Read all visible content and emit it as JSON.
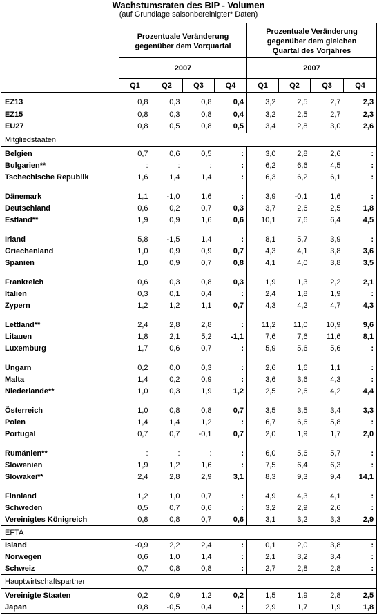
{
  "title": "Wachstumsraten des BIP  -  Volumen",
  "subtitle": "(auf Grundlage saisonbereinigter* Daten)",
  "header": {
    "group1": "Prozentuale Veränderung gegenüber dem Vorquartal",
    "group1_line1": "Prozentuale Veränderung",
    "group1_line2": "gegenüber dem Vorquartal",
    "group2_line1": "Prozentuale Veränderung",
    "group2_line2": "gegenüber dem gleichen",
    "group2_line3": "Quartal des Vorjahres",
    "year1": "2007",
    "year2": "2007",
    "quarters": [
      "Q1",
      "Q2",
      "Q3",
      "Q4",
      "Q1",
      "Q2",
      "Q3",
      "Q4"
    ]
  },
  "aggregates": [
    {
      "name": "EZ13",
      "v": [
        "0,8",
        "0,3",
        "0,8",
        "0,4",
        "3,2",
        "2,5",
        "2,7",
        "2,3"
      ]
    },
    {
      "name": "EZ15",
      "v": [
        "0,8",
        "0,3",
        "0,8",
        "0,4",
        "3,2",
        "2,5",
        "2,7",
        "2,3"
      ]
    },
    {
      "name": "EU27",
      "v": [
        "0,8",
        "0,5",
        "0,8",
        "0,5",
        "3,4",
        "2,8",
        "3,0",
        "2,6"
      ]
    }
  ],
  "sections": {
    "members": "Mitgliedstaaten",
    "efta": "EFTA",
    "partners": "Hauptwirtschaftspartner"
  },
  "member_groups": [
    [
      {
        "name": "Belgien",
        "v": [
          "0,7",
          "0,6",
          "0,5",
          ":",
          "3,0",
          "2,8",
          "2,6",
          ":"
        ]
      },
      {
        "name": "Bulgarien**",
        "v": [
          ":",
          ":",
          ":",
          ":",
          "6,2",
          "6,6",
          "4,5",
          ":"
        ]
      },
      {
        "name": "Tschechische Republik",
        "v": [
          "1,6",
          "1,4",
          "1,4",
          ":",
          "6,3",
          "6,2",
          "6,1",
          ":"
        ]
      }
    ],
    [
      {
        "name": "Dänemark",
        "v": [
          "1,1",
          "-1,0",
          "1,6",
          ":",
          "3,9",
          "-0,1",
          "1,6",
          ":"
        ]
      },
      {
        "name": "Deutschland",
        "v": [
          "0,6",
          "0,2",
          "0,7",
          "0,3",
          "3,7",
          "2,6",
          "2,5",
          "1,8"
        ]
      },
      {
        "name": "Estland**",
        "v": [
          "1,9",
          "0,9",
          "1,6",
          "0,6",
          "10,1",
          "7,6",
          "6,4",
          "4,5"
        ]
      }
    ],
    [
      {
        "name": "Irland",
        "v": [
          "5,8",
          "-1,5",
          "1,4",
          ":",
          "8,1",
          "5,7",
          "3,9",
          ":"
        ]
      },
      {
        "name": "Griechenland",
        "v": [
          "1,0",
          "0,9",
          "0,9",
          "0,7",
          "4,3",
          "4,1",
          "3,8",
          "3,6"
        ]
      },
      {
        "name": "Spanien",
        "v": [
          "1,0",
          "0,9",
          "0,7",
          "0,8",
          "4,1",
          "4,0",
          "3,8",
          "3,5"
        ]
      }
    ],
    [
      {
        "name": "Frankreich",
        "v": [
          "0,6",
          "0,3",
          "0,8",
          "0,3",
          "1,9",
          "1,3",
          "2,2",
          "2,1"
        ]
      },
      {
        "name": "Italien",
        "v": [
          "0,3",
          "0,1",
          "0,4",
          ":",
          "2,4",
          "1,8",
          "1,9",
          ":"
        ]
      },
      {
        "name": "Zypern",
        "v": [
          "1,2",
          "1,2",
          "1,1",
          "0,7",
          "4,3",
          "4,2",
          "4,7",
          "4,3"
        ]
      }
    ],
    [
      {
        "name": "Lettland**",
        "v": [
          "2,4",
          "2,8",
          "2,8",
          ":",
          "11,2",
          "11,0",
          "10,9",
          "9,6"
        ]
      },
      {
        "name": "Litauen",
        "v": [
          "1,8",
          "2,1",
          "5,2",
          "-1,1",
          "7,6",
          "7,6",
          "11,6",
          "8,1"
        ]
      },
      {
        "name": "Luxemburg",
        "v": [
          "1,7",
          "0,6",
          "0,7",
          ":",
          "5,9",
          "5,6",
          "5,6",
          ":"
        ]
      }
    ],
    [
      {
        "name": "Ungarn",
        "v": [
          "0,2",
          "0,0",
          "0,3",
          ":",
          "2,6",
          "1,6",
          "1,1",
          ":"
        ]
      },
      {
        "name": "Malta",
        "v": [
          "1,4",
          "0,2",
          "0,9",
          ":",
          "3,6",
          "3,6",
          "4,3",
          ":"
        ]
      },
      {
        "name": "Niederlande**",
        "v": [
          "1,0",
          "0,3",
          "1,9",
          "1,2",
          "2,5",
          "2,6",
          "4,2",
          "4,4"
        ]
      }
    ],
    [
      {
        "name": "Österreich",
        "v": [
          "1,0",
          "0,8",
          "0,8",
          "0,7",
          "3,5",
          "3,5",
          "3,4",
          "3,3"
        ]
      },
      {
        "name": "Polen",
        "v": [
          "1,4",
          "1,4",
          "1,2",
          ":",
          "6,7",
          "6,6",
          "5,8",
          ":"
        ]
      },
      {
        "name": "Portugal",
        "v": [
          "0,7",
          "0,7",
          "-0,1",
          "0,7",
          "2,0",
          "1,9",
          "1,7",
          "2,0"
        ]
      }
    ],
    [
      {
        "name": "Rumänien**",
        "v": [
          ":",
          ":",
          ":",
          ":",
          "6,0",
          "5,6",
          "5,7",
          ":"
        ]
      },
      {
        "name": "Slowenien",
        "v": [
          "1,9",
          "1,2",
          "1,6",
          ":",
          "7,5",
          "6,4",
          "6,3",
          ":"
        ]
      },
      {
        "name": "Slowakei**",
        "v": [
          "2,4",
          "2,8",
          "2,9",
          "3,1",
          "8,3",
          "9,3",
          "9,4",
          "14,1"
        ]
      }
    ],
    [
      {
        "name": "Finnland",
        "v": [
          "1,2",
          "1,0",
          "0,7",
          ":",
          "4,9",
          "4,3",
          "4,1",
          ":"
        ]
      },
      {
        "name": "Schweden",
        "v": [
          "0,5",
          "0,7",
          "0,6",
          ":",
          "3,2",
          "2,9",
          "2,6",
          ":"
        ]
      },
      {
        "name": "Vereinigtes Königreich",
        "v": [
          "0,8",
          "0,8",
          "0,7",
          "0,6",
          "3,1",
          "3,2",
          "3,3",
          "2,9"
        ]
      }
    ]
  ],
  "efta": [
    {
      "name": "Island",
      "v": [
        "-0,9",
        "2,2",
        "2,4",
        ":",
        "0,1",
        "2,0",
        "3,8",
        ":"
      ]
    },
    {
      "name": "Norwegen",
      "v": [
        "0,6",
        "1,0",
        "1,4",
        ":",
        "2,1",
        "3,2",
        "3,4",
        ":"
      ]
    },
    {
      "name": "Schweiz",
      "v": [
        "0,7",
        "0,8",
        "0,8",
        ":",
        "2,7",
        "2,8",
        "2,8",
        ":"
      ]
    }
  ],
  "partners": [
    {
      "name": "Vereinigte Staaten",
      "v": [
        "0,2",
        "0,9",
        "1,2",
        "0,2",
        "1,5",
        "1,9",
        "2,8",
        "2,5"
      ]
    },
    {
      "name": "Japan",
      "v": [
        "0,8",
        "-0,5",
        "0,4",
        ":",
        "2,9",
        "1,7",
        "1,9",
        "1,8"
      ]
    }
  ]
}
